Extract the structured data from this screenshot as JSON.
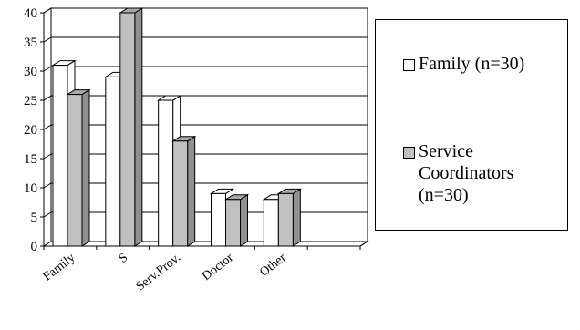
{
  "chart_data": {
    "type": "bar",
    "categories": [
      "Family",
      "S",
      "Serv.Prov.",
      "Doctor",
      "Other",
      ""
    ],
    "series": [
      {
        "name": "Family (n=30)",
        "values": [
          31,
          29,
          25,
          9,
          8,
          0
        ],
        "color": "#ffffff"
      },
      {
        "name": "Service Coordinators (n=30)",
        "values": [
          26,
          40,
          18,
          8,
          9,
          0
        ],
        "color": "#c0c0c0"
      }
    ],
    "ylim": [
      0,
      40
    ],
    "yticks": [
      "0",
      "5",
      "10",
      "15",
      "20",
      "25",
      "30",
      "35",
      "40"
    ],
    "grid": true,
    "legend_position": "right",
    "title": "",
    "xlabel": "",
    "ylabel": ""
  }
}
